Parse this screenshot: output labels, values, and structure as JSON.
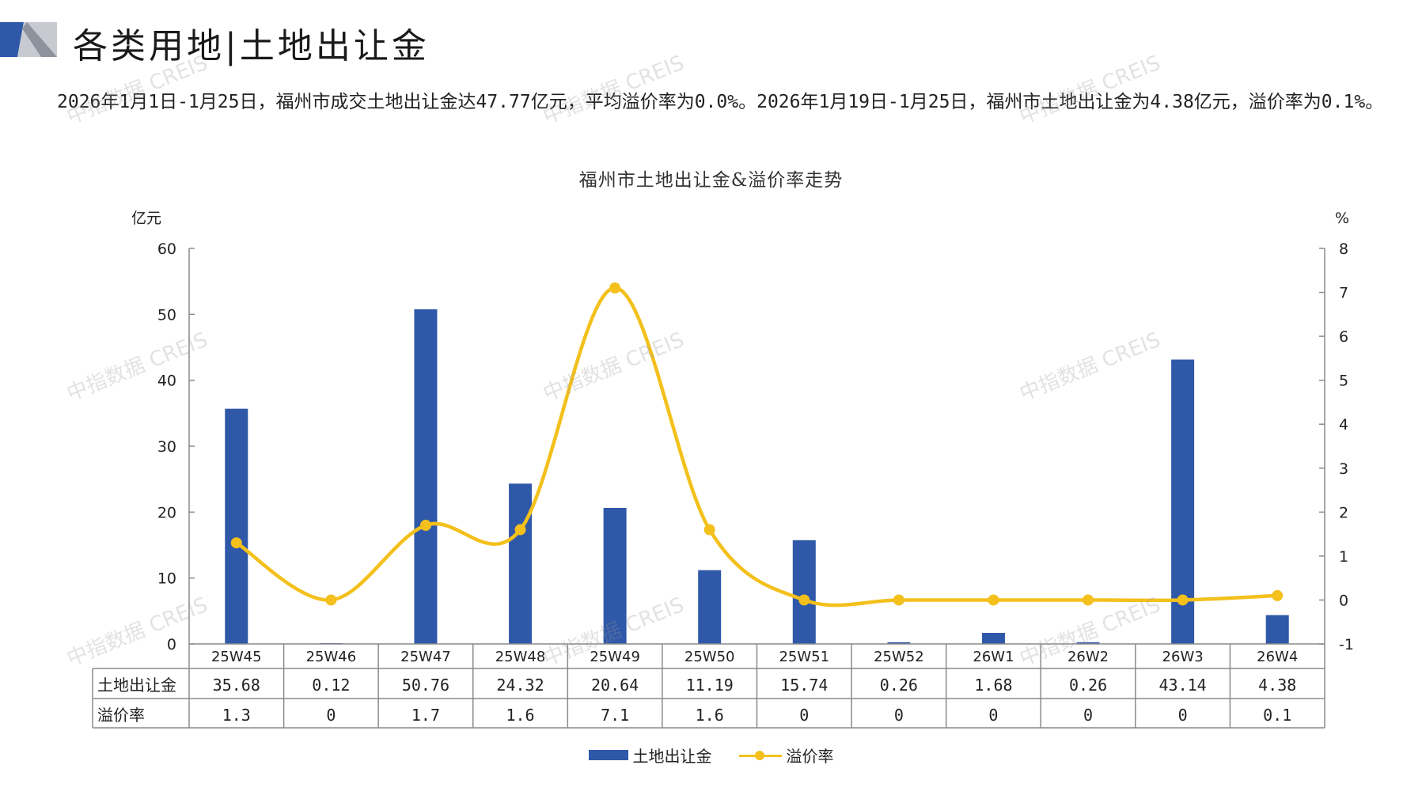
{
  "header": {
    "title": "各类用地|土地出让金"
  },
  "summary": "2026年1月1日-1月25日，福州市成交土地出让金达47.77亿元，平均溢价率为0.0%。2026年1月19日-1月25日，福州市土地出让金为4.38亿元，溢价率为0.1%。",
  "watermark_text": "中指数据 CREIS",
  "colors": {
    "bar": "#2f58a8",
    "line": "#f3c01c",
    "deco_dark": "#2f58a8",
    "deco_light": "#9aa0a8"
  },
  "chart_data": {
    "type": "bar",
    "title": "福州市土地出让金&溢价率走势",
    "y_left_unit": "亿元",
    "y_right_unit": "%",
    "ylim_left": [
      0,
      60
    ],
    "yticks_left": [
      0,
      10,
      20,
      30,
      40,
      50,
      60
    ],
    "ylim_right": [
      -1,
      8
    ],
    "yticks_right": [
      -1,
      0,
      1,
      2,
      3,
      4,
      5,
      6,
      7,
      8
    ],
    "categories": [
      "25W45",
      "25W46",
      "25W47",
      "25W48",
      "25W49",
      "25W50",
      "25W51",
      "25W52",
      "26W1",
      "26W2",
      "26W3",
      "26W4"
    ],
    "series": [
      {
        "name": "土地出让金",
        "type": "bar",
        "axis": "left",
        "values": [
          35.68,
          0.12,
          50.76,
          24.32,
          20.64,
          11.19,
          15.74,
          0.26,
          1.68,
          0.26,
          43.14,
          4.38
        ],
        "labels": [
          "35.68",
          "0.12",
          "50.76",
          "24.32",
          "20.64",
          "11.19",
          "15.74",
          "0.26",
          "1.68",
          "0.26",
          "43.14",
          "4.38"
        ]
      },
      {
        "name": "溢价率",
        "type": "line",
        "axis": "right",
        "values": [
          1.3,
          0,
          1.7,
          1.6,
          7.1,
          1.6,
          0,
          0,
          0,
          0,
          0,
          0.1
        ],
        "labels": [
          "1.3",
          "0",
          "1.7",
          "1.6",
          "7.1",
          "1.6",
          "0",
          "0",
          "0",
          "0",
          "0",
          "0.1"
        ]
      }
    ],
    "legend_position": "bottom",
    "grid": false,
    "data_table": true
  }
}
